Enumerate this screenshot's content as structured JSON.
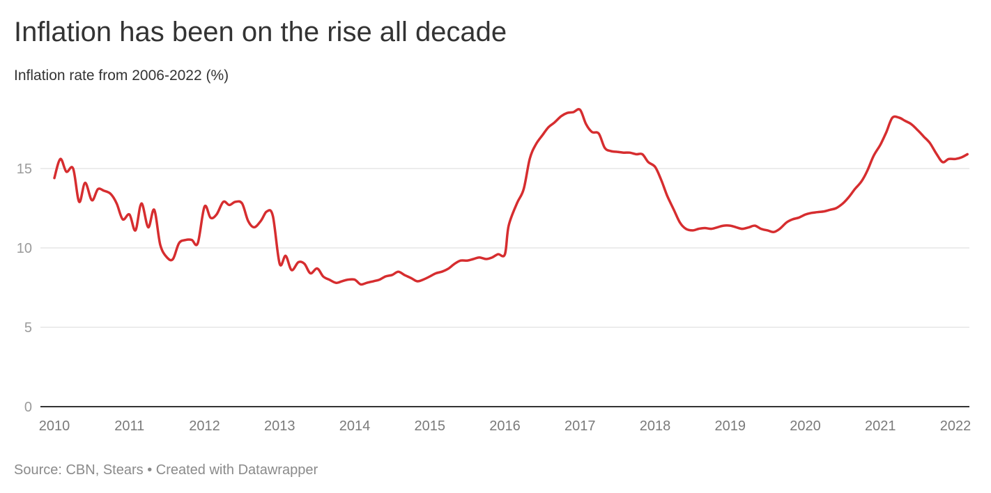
{
  "title": "Inflation has been on the rise all decade",
  "subtitle": "Inflation rate from 2006-2022 (%)",
  "footer": {
    "source_label": "Source: CBN, Stears",
    "separator": "•",
    "credit": "Created with Datawrapper"
  },
  "colors": {
    "line": "#d62d2f",
    "grid": "#e0e0e0",
    "baseline": "#333333"
  },
  "chart_data": {
    "type": "line",
    "title": "Inflation has been on the rise all decade",
    "subtitle": "Inflation rate from 2006-2022 (%)",
    "xlabel": "",
    "ylabel": "",
    "xlim": [
      2010.0,
      2022.0
    ],
    "ylim": [
      0,
      19
    ],
    "x_ticks": [
      2010,
      2011,
      2012,
      2013,
      2014,
      2015,
      2016,
      2017,
      2018,
      2019,
      2020,
      2021,
      2022
    ],
    "y_ticks": [
      0,
      5,
      10,
      15
    ],
    "grid": true,
    "legend": "none",
    "series": [
      {
        "color": "#d62d2f",
        "points": [
          [
            2010.0,
            14.4
          ],
          [
            2010.08,
            15.6
          ],
          [
            2010.16,
            14.8
          ],
          [
            2010.25,
            15.0
          ],
          [
            2010.33,
            12.9
          ],
          [
            2010.41,
            14.1
          ],
          [
            2010.5,
            13.0
          ],
          [
            2010.58,
            13.7
          ],
          [
            2010.66,
            13.6
          ],
          [
            2010.75,
            13.4
          ],
          [
            2010.83,
            12.8
          ],
          [
            2010.91,
            11.8
          ],
          [
            2011.0,
            12.1
          ],
          [
            2011.08,
            11.1
          ],
          [
            2011.16,
            12.8
          ],
          [
            2011.25,
            11.3
          ],
          [
            2011.33,
            12.4
          ],
          [
            2011.41,
            10.2
          ],
          [
            2011.5,
            9.4
          ],
          [
            2011.58,
            9.3
          ],
          [
            2011.66,
            10.3
          ],
          [
            2011.75,
            10.5
          ],
          [
            2011.83,
            10.5
          ],
          [
            2011.91,
            10.3
          ],
          [
            2012.0,
            12.6
          ],
          [
            2012.08,
            11.9
          ],
          [
            2012.16,
            12.1
          ],
          [
            2012.25,
            12.9
          ],
          [
            2012.33,
            12.7
          ],
          [
            2012.41,
            12.9
          ],
          [
            2012.5,
            12.8
          ],
          [
            2012.58,
            11.7
          ],
          [
            2012.66,
            11.3
          ],
          [
            2012.75,
            11.7
          ],
          [
            2012.83,
            12.3
          ],
          [
            2012.91,
            12.0
          ],
          [
            2013.0,
            9.0
          ],
          [
            2013.08,
            9.5
          ],
          [
            2013.16,
            8.6
          ],
          [
            2013.25,
            9.1
          ],
          [
            2013.33,
            9.0
          ],
          [
            2013.41,
            8.4
          ],
          [
            2013.5,
            8.7
          ],
          [
            2013.58,
            8.2
          ],
          [
            2013.66,
            8.0
          ],
          [
            2013.75,
            7.8
          ],
          [
            2013.83,
            7.9
          ],
          [
            2013.91,
            8.0
          ],
          [
            2014.0,
            8.0
          ],
          [
            2014.08,
            7.7
          ],
          [
            2014.16,
            7.8
          ],
          [
            2014.25,
            7.9
          ],
          [
            2014.33,
            8.0
          ],
          [
            2014.41,
            8.2
          ],
          [
            2014.5,
            8.3
          ],
          [
            2014.58,
            8.5
          ],
          [
            2014.66,
            8.3
          ],
          [
            2014.75,
            8.1
          ],
          [
            2014.83,
            7.9
          ],
          [
            2014.91,
            8.0
          ],
          [
            2015.0,
            8.2
          ],
          [
            2015.08,
            8.4
          ],
          [
            2015.16,
            8.5
          ],
          [
            2015.25,
            8.7
          ],
          [
            2015.33,
            9.0
          ],
          [
            2015.41,
            9.2
          ],
          [
            2015.5,
            9.2
          ],
          [
            2015.58,
            9.3
          ],
          [
            2015.66,
            9.4
          ],
          [
            2015.75,
            9.3
          ],
          [
            2015.83,
            9.4
          ],
          [
            2015.91,
            9.6
          ],
          [
            2016.0,
            9.6
          ],
          [
            2016.05,
            11.4
          ],
          [
            2016.16,
            12.8
          ],
          [
            2016.25,
            13.7
          ],
          [
            2016.33,
            15.6
          ],
          [
            2016.41,
            16.5
          ],
          [
            2016.5,
            17.1
          ],
          [
            2016.58,
            17.6
          ],
          [
            2016.66,
            17.9
          ],
          [
            2016.75,
            18.3
          ],
          [
            2016.83,
            18.5
          ],
          [
            2016.91,
            18.55
          ],
          [
            2017.0,
            18.7
          ],
          [
            2017.08,
            17.8
          ],
          [
            2017.16,
            17.3
          ],
          [
            2017.25,
            17.2
          ],
          [
            2017.33,
            16.3
          ],
          [
            2017.41,
            16.1
          ],
          [
            2017.5,
            16.05
          ],
          [
            2017.58,
            16.0
          ],
          [
            2017.66,
            16.0
          ],
          [
            2017.75,
            15.9
          ],
          [
            2017.83,
            15.9
          ],
          [
            2017.91,
            15.4
          ],
          [
            2018.0,
            15.1
          ],
          [
            2018.08,
            14.3
          ],
          [
            2018.16,
            13.3
          ],
          [
            2018.25,
            12.4
          ],
          [
            2018.33,
            11.6
          ],
          [
            2018.41,
            11.2
          ],
          [
            2018.5,
            11.1
          ],
          [
            2018.58,
            11.2
          ],
          [
            2018.66,
            11.25
          ],
          [
            2018.75,
            11.2
          ],
          [
            2018.83,
            11.3
          ],
          [
            2018.91,
            11.4
          ],
          [
            2019.0,
            11.4
          ],
          [
            2019.08,
            11.3
          ],
          [
            2019.16,
            11.2
          ],
          [
            2019.25,
            11.3
          ],
          [
            2019.33,
            11.4
          ],
          [
            2019.41,
            11.2
          ],
          [
            2019.5,
            11.1
          ],
          [
            2019.58,
            11.0
          ],
          [
            2019.66,
            11.2
          ],
          [
            2019.75,
            11.6
          ],
          [
            2019.83,
            11.8
          ],
          [
            2019.91,
            11.9
          ],
          [
            2020.0,
            12.1
          ],
          [
            2020.08,
            12.2
          ],
          [
            2020.16,
            12.25
          ],
          [
            2020.25,
            12.3
          ],
          [
            2020.33,
            12.4
          ],
          [
            2020.41,
            12.5
          ],
          [
            2020.5,
            12.8
          ],
          [
            2020.58,
            13.2
          ],
          [
            2020.66,
            13.7
          ],
          [
            2020.75,
            14.2
          ],
          [
            2020.83,
            14.9
          ],
          [
            2020.91,
            15.8
          ],
          [
            2021.0,
            16.5
          ],
          [
            2021.08,
            17.3
          ],
          [
            2021.16,
            18.2
          ],
          [
            2021.25,
            18.2
          ],
          [
            2021.33,
            18.0
          ],
          [
            2021.41,
            17.8
          ],
          [
            2021.5,
            17.4
          ],
          [
            2021.58,
            17.0
          ],
          [
            2021.66,
            16.6
          ],
          [
            2021.75,
            15.9
          ],
          [
            2021.83,
            15.4
          ],
          [
            2021.91,
            15.6
          ],
          [
            2022.0,
            15.6
          ],
          [
            2022.08,
            15.7
          ],
          [
            2022.16,
            15.9
          ]
        ]
      }
    ]
  }
}
